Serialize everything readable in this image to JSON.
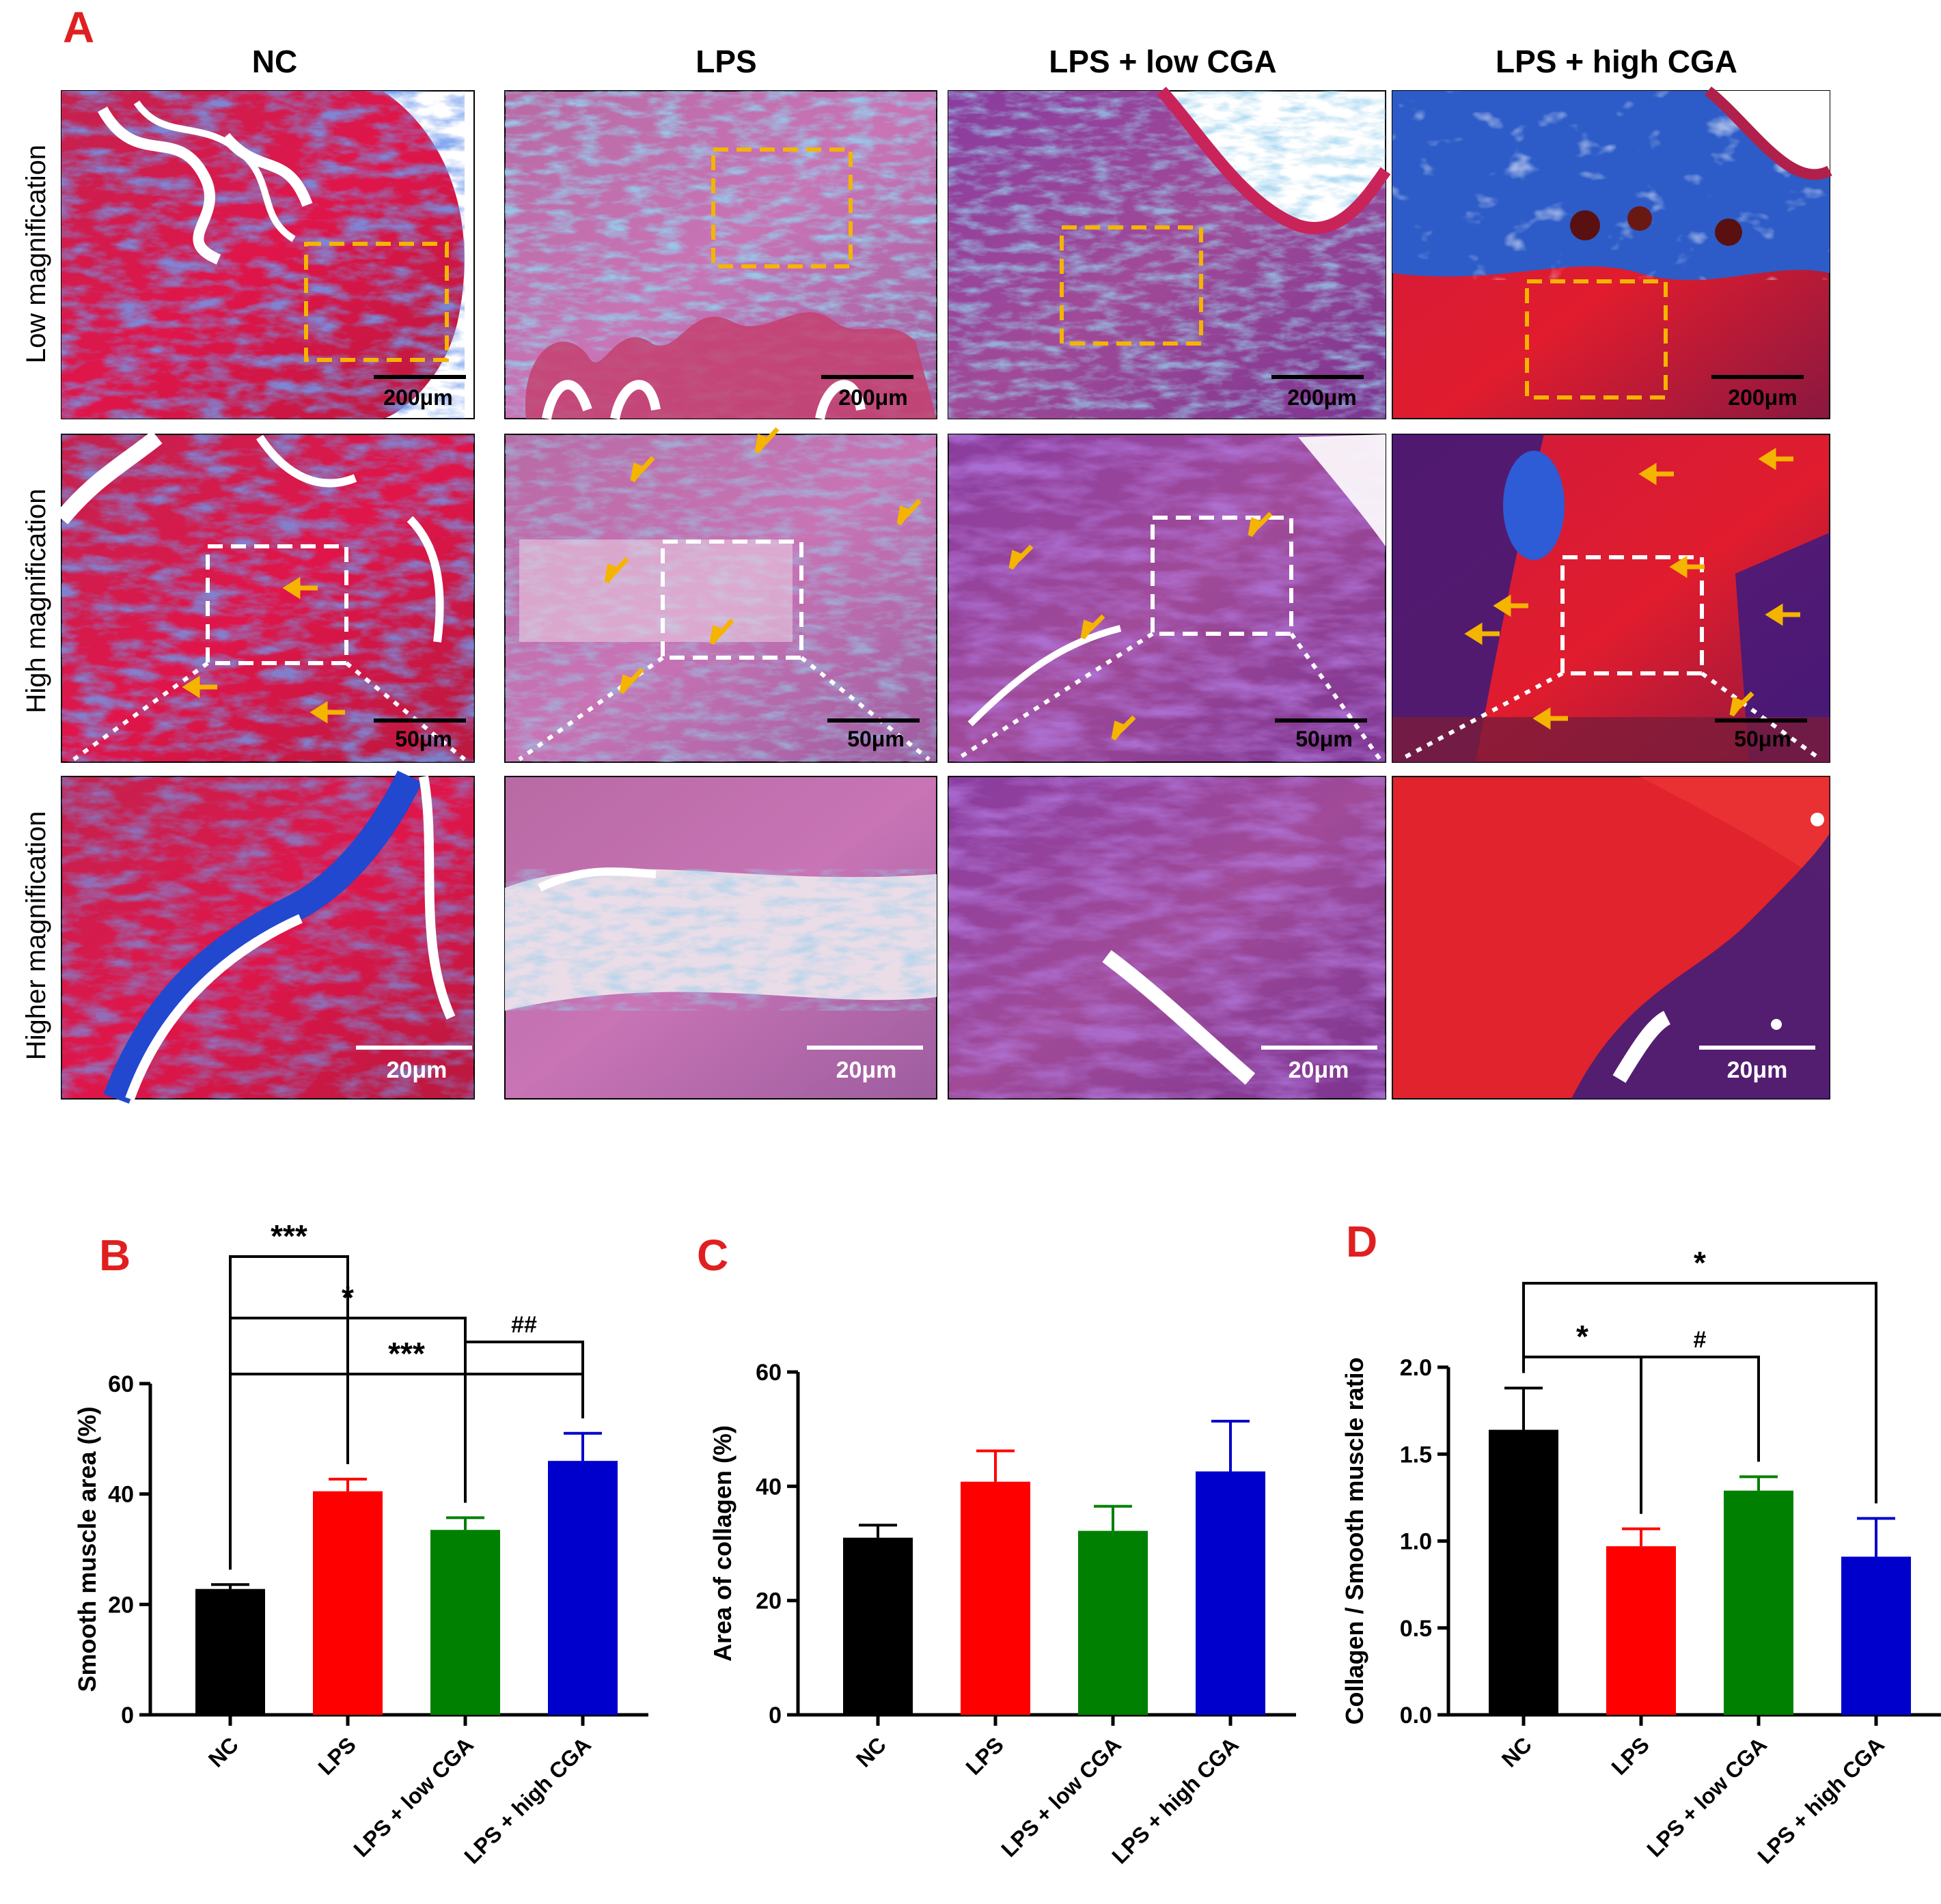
{
  "panel_a": {
    "letter": "A",
    "columns": [
      "NC",
      "LPS",
      "LPS + low CGA",
      "LPS + high CGA"
    ],
    "rows": [
      "Low magnification",
      "High magnification",
      "Higher magnification"
    ],
    "scale_bars": [
      "200μm",
      "50μm",
      "20μm"
    ]
  },
  "colors": {
    "panel_letter": "#e02020",
    "roi_low": "#f5b400",
    "roi_high": "#ffffff",
    "muscle": "#d11a4a",
    "collagen": "#2a52c8",
    "bars": [
      "#000000",
      "#ff0000",
      "#008000",
      "#0000cc"
    ]
  },
  "chart_data": [
    {
      "panel": "B",
      "type": "bar",
      "categories": [
        "NC",
        "LPS",
        "LPS + low CGA",
        "LPS + high CGA"
      ],
      "values": [
        22.8,
        40.5,
        33.5,
        46.0
      ],
      "errors": [
        0.8,
        2.2,
        2.2,
        5.0
      ],
      "ylabel": "Smooth muscle area (%)",
      "ylim": [
        0,
        60
      ],
      "yticks": [
        "0",
        "20",
        "40",
        "60"
      ],
      "annotations": [
        {
          "from": 0,
          "to": 3,
          "label": "***"
        },
        {
          "from": 0,
          "to": 2,
          "label": "*"
        },
        {
          "from": 0,
          "to": 1,
          "label": "***"
        },
        {
          "from": 2,
          "to": 3,
          "label": "##"
        }
      ]
    },
    {
      "panel": "C",
      "type": "bar",
      "categories": [
        "NC",
        "LPS",
        "LPS + low CGA",
        "LPS + high CGA"
      ],
      "values": [
        31.0,
        40.8,
        32.2,
        42.6
      ],
      "errors": [
        2.2,
        5.4,
        4.3,
        8.8
      ],
      "ylabel": "Area of collagen (%)",
      "ylim": [
        0,
        60
      ],
      "yticks": [
        "0",
        "20",
        "40",
        "60"
      ],
      "annotations": []
    },
    {
      "panel": "D",
      "type": "bar",
      "categories": [
        "NC",
        "LPS",
        "LPS + low CGA",
        "LPS + high CGA"
      ],
      "values": [
        1.64,
        0.97,
        1.29,
        0.91
      ],
      "errors": [
        0.24,
        0.1,
        0.08,
        0.22
      ],
      "ylabel": "Collagen / Smooth muscle ratio",
      "ylim": [
        0,
        2.0
      ],
      "yticks": [
        "0.0",
        "0.5",
        "1.0",
        "1.5",
        "2.0"
      ],
      "annotations": [
        {
          "from": 0,
          "to": 3,
          "label": "*"
        },
        {
          "from": 0,
          "to": 1,
          "label": "*"
        },
        {
          "from": 1,
          "to": 2,
          "label": "#"
        }
      ]
    }
  ]
}
